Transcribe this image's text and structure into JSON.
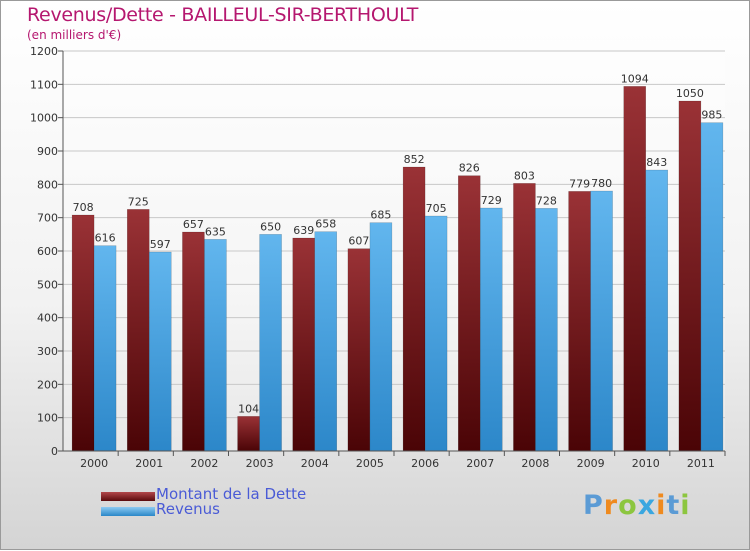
{
  "title": "Revenus/Dette - BAILLEUL-SIR-BERTHOULT",
  "subtitle": "(en milliers d'€)",
  "legend": [
    {
      "label": "Montant de la Dette",
      "color": "#7b1a1d"
    },
    {
      "label": "Revenus",
      "color": "#4aa8e6"
    }
  ],
  "logo": {
    "text": "Proxiti",
    "letters": [
      {
        "ch": "P",
        "color": "#5b9bd5"
      },
      {
        "ch": "r",
        "color": "#ef8a1e"
      },
      {
        "ch": "o",
        "color": "#8cc63f"
      },
      {
        "ch": "x",
        "color": "#3aa7e0"
      },
      {
        "ch": "i",
        "color": "#ef8a1e"
      },
      {
        "ch": "t",
        "color": "#5b9bd5"
      },
      {
        "ch": "i",
        "color": "#8cc63f"
      }
    ]
  },
  "chart_data": {
    "type": "bar",
    "categories": [
      "2000",
      "2001",
      "2002",
      "2003",
      "2004",
      "2005",
      "2006",
      "2007",
      "2008",
      "2009",
      "2010",
      "2011"
    ],
    "series": [
      {
        "name": "Montant de la Dette",
        "color": "#7b1a1d",
        "values": [
          708,
          725,
          657,
          104,
          639,
          607,
          852,
          826,
          803,
          779,
          1094,
          1050
        ],
        "labels": [
          "708",
          "725",
          "657",
          "104",
          "639",
          "607",
          "852",
          "826",
          "803",
          "779",
          "1094",
          "1050"
        ]
      },
      {
        "name": "Revenus",
        "color": "#4aa8e6",
        "values": [
          616,
          597,
          635,
          650,
          658,
          685,
          705,
          729,
          728,
          780,
          843,
          985
        ],
        "labels": [
          "616",
          "597",
          "635",
          "650",
          "658",
          "685",
          "705",
          "729",
          "728",
          "780",
          "843",
          "985"
        ]
      }
    ],
    "yticks": [
      0,
      100,
      200,
      300,
      400,
      500,
      600,
      700,
      800,
      900,
      1000,
      1100,
      1200
    ],
    "ylim": [
      0,
      1200
    ],
    "grid": true
  }
}
